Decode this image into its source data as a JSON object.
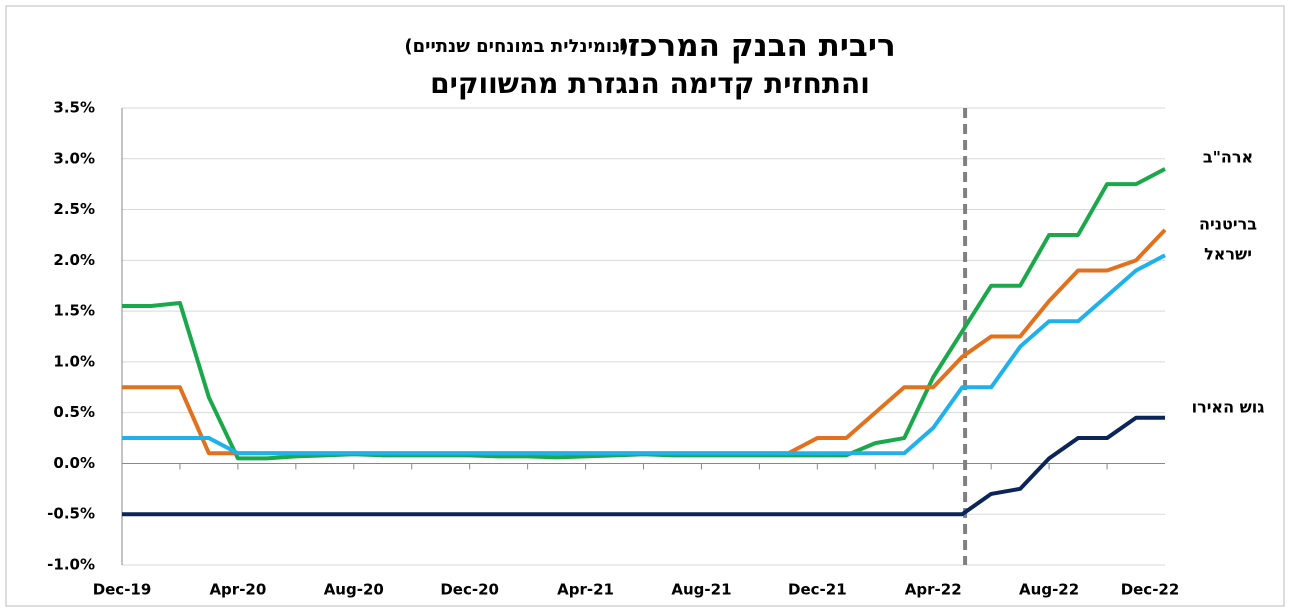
{
  "chart_data": {
    "type": "line",
    "title": "ריבית הבנק המרכזי",
    "subtitle": "(נומינלית במונחים שנתיים)",
    "title_line2": "והתחזית קדימה הנגזרת מהשווקים",
    "categories": [
      "Dec-19",
      null,
      null,
      null,
      "Apr-20",
      null,
      null,
      null,
      "Aug-20",
      null,
      null,
      null,
      "Dec-20",
      null,
      null,
      null,
      "Apr-21",
      null,
      null,
      null,
      "Aug-21",
      null,
      null,
      null,
      "Dec-21",
      null,
      null,
      null,
      "Apr-22",
      null,
      null,
      null,
      "Aug-22",
      null,
      null,
      null,
      "Dec-22"
    ],
    "series": [
      {
        "name": "ארה\"ב",
        "color": "#1aa84b",
        "values": [
          1.55,
          1.55,
          1.58,
          0.65,
          0.05,
          0.05,
          0.07,
          0.08,
          0.09,
          0.08,
          0.08,
          0.08,
          0.08,
          0.07,
          0.07,
          0.06,
          0.07,
          0.08,
          0.09,
          0.08,
          0.08,
          0.08,
          0.08,
          0.08,
          0.08,
          0.08,
          0.2,
          0.25,
          0.85,
          1.3,
          1.75,
          1.75,
          2.25,
          2.25,
          2.75,
          2.75,
          2.9
        ]
      },
      {
        "name": "בריטניה",
        "color": "#e2711d",
        "values": [
          0.75,
          0.75,
          0.75,
          0.1,
          0.1,
          0.1,
          0.1,
          0.1,
          0.1,
          0.1,
          0.1,
          0.1,
          0.1,
          0.1,
          0.1,
          0.1,
          0.1,
          0.1,
          0.1,
          0.1,
          0.1,
          0.1,
          0.1,
          0.1,
          0.25,
          0.25,
          0.5,
          0.75,
          0.75,
          1.05,
          1.25,
          1.25,
          1.6,
          1.9,
          1.9,
          2.0,
          2.3
        ]
      },
      {
        "name": "ישראל",
        "color": "#1eb1ea",
        "values": [
          0.25,
          0.25,
          0.25,
          0.25,
          0.1,
          0.1,
          0.1,
          0.1,
          0.1,
          0.1,
          0.1,
          0.1,
          0.1,
          0.1,
          0.1,
          0.1,
          0.1,
          0.1,
          0.1,
          0.1,
          0.1,
          0.1,
          0.1,
          0.1,
          0.1,
          0.1,
          0.1,
          0.1,
          0.35,
          0.75,
          0.75,
          1.15,
          1.4,
          1.4,
          1.65,
          1.9,
          2.05
        ]
      },
      {
        "name": "גוש האירו",
        "color": "#0b2459",
        "values": [
          -0.5,
          -0.5,
          -0.5,
          -0.5,
          -0.5,
          -0.5,
          -0.5,
          -0.5,
          -0.5,
          -0.5,
          -0.5,
          -0.5,
          -0.5,
          -0.5,
          -0.5,
          -0.5,
          -0.5,
          -0.5,
          -0.5,
          -0.5,
          -0.5,
          -0.5,
          -0.5,
          -0.5,
          -0.5,
          -0.5,
          -0.5,
          -0.5,
          -0.5,
          -0.5,
          -0.3,
          -0.25,
          0.05,
          0.25,
          0.25,
          0.45,
          0.45
        ]
      }
    ],
    "ylim": [
      -1.0,
      3.5
    ],
    "yticks": [
      {
        "value": -1.0,
        "label": "-1.0%"
      },
      {
        "value": -0.5,
        "label": "-0.5%"
      },
      {
        "value": 0,
        "label": "0.0%"
      },
      {
        "value": 0.5,
        "label": "0.5%"
      },
      {
        "value": 1.0,
        "label": "1.0%"
      },
      {
        "value": 1.5,
        "label": "1.5%"
      },
      {
        "value": 2.0,
        "label": "2.0%"
      },
      {
        "value": 2.5,
        "label": "2.5%"
      },
      {
        "value": 3.0,
        "label": "3.0%"
      },
      {
        "value": 3.5,
        "label": "3.5%"
      }
    ],
    "grid": true,
    "vline_at": 29.1
  }
}
